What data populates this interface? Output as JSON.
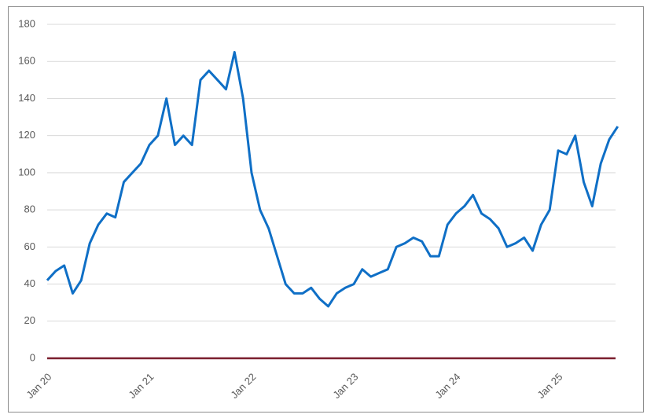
{
  "chart_data": {
    "type": "line",
    "categories": [
      "Jan 20",
      null,
      null,
      null,
      null,
      null,
      null,
      null,
      null,
      null,
      null,
      null,
      "Jan 21",
      null,
      null,
      null,
      null,
      null,
      null,
      null,
      null,
      null,
      null,
      null,
      "Jan 22",
      null,
      null,
      null,
      null,
      null,
      null,
      null,
      null,
      null,
      null,
      null,
      "Jan 23",
      null,
      null,
      null,
      null,
      null,
      null,
      null,
      null,
      null,
      null,
      null,
      "Jan 24",
      null,
      null,
      null,
      null,
      null,
      null,
      null,
      null,
      null,
      null,
      null,
      "Jan 25",
      null,
      null,
      null,
      null,
      null,
      null,
      null
    ],
    "series": [
      {
        "color": "#0f6fc6",
        "values": [
          42,
          47,
          50,
          35,
          42,
          62,
          72,
          78,
          76,
          95,
          100,
          105,
          115,
          120,
          140,
          115,
          120,
          115,
          150,
          155,
          150,
          145,
          165,
          140,
          100,
          80,
          70,
          55,
          40,
          35,
          35,
          38,
          32,
          28,
          35,
          38,
          40,
          48,
          44,
          46,
          48,
          60,
          62,
          65,
          63,
          55,
          55,
          72,
          78,
          82,
          88,
          78,
          75,
          70,
          60,
          62,
          65,
          58,
          72,
          80,
          112,
          110,
          120,
          95,
          82,
          105,
          118,
          125
        ]
      }
    ],
    "ylim": [
      0,
      180
    ],
    "yticks": [
      0,
      20,
      40,
      60,
      80,
      100,
      120,
      140,
      160,
      180
    ],
    "grid": true,
    "zero_line_color": "#7b1f2e"
  }
}
